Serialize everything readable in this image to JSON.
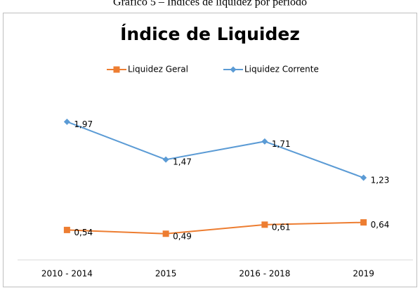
{
  "caption": "Gráfico 5 – Índices de liquidez por período",
  "chart_data": {
    "type": "line",
    "title": "Índice de Liquidez",
    "categories": [
      "2010 - 2014",
      "2015",
      "2016 - 2018",
      "2019"
    ],
    "series": [
      {
        "name": "Liquidez Geral",
        "color": "#ed7d31",
        "values": [
          0.54,
          0.49,
          0.61,
          0.64
        ],
        "value_labels": [
          "0,54",
          "0,49",
          "0,61",
          "0,64"
        ]
      },
      {
        "name": "Liquidez Corrente",
        "color": "#5b9bd5",
        "values": [
          1.97,
          1.47,
          1.71,
          1.23
        ],
        "value_labels": [
          "1,97",
          "1,47",
          "1,71",
          "1,23"
        ]
      }
    ],
    "ylim": [
      0.2,
      2.4
    ],
    "legend": "top"
  }
}
